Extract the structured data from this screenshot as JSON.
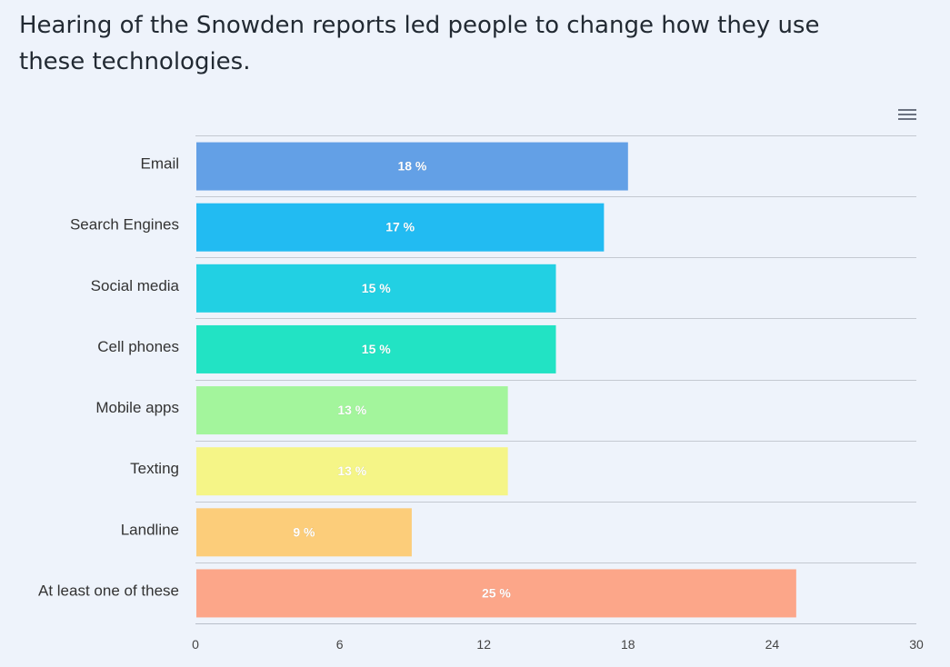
{
  "title": "Hearing of the Snowden reports led people to change how they use these technologies.",
  "menu": {
    "icon": "hamburger-menu-icon"
  },
  "chart_data": {
    "type": "bar",
    "orientation": "horizontal",
    "title": "Hearing of the Snowden reports led people to change how they use these technologies.",
    "categories": [
      "Email",
      "Search Engines",
      "Social media",
      "Cell phones",
      "Mobile apps",
      "Texting",
      "Landline",
      "At least one of these"
    ],
    "values": [
      18,
      17,
      15,
      15,
      13,
      13,
      9,
      25
    ],
    "data_labels": [
      "18 %",
      "17 %",
      "15 %",
      "15 %",
      "13 %",
      "13 %",
      "9 %",
      "25 %"
    ],
    "colors": [
      "#63a0e6",
      "#22bbf2",
      "#22d0e3",
      "#22e3c4",
      "#a3f59c",
      "#f5f587",
      "#fccd7a",
      "#fca689"
    ],
    "xlim": [
      0,
      30
    ],
    "xticks": [
      0,
      6,
      12,
      18,
      24,
      30
    ],
    "xlabel": "",
    "ylabel": "",
    "grid": true,
    "legend": "none"
  }
}
